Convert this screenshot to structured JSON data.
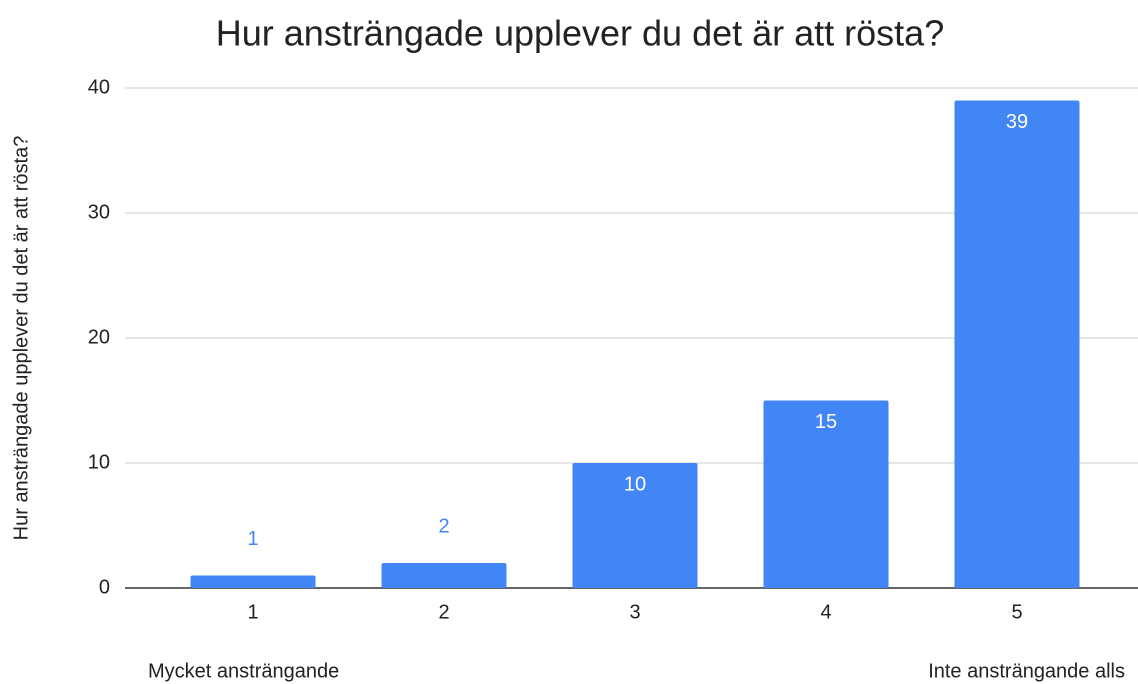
{
  "chart_data": {
    "type": "bar",
    "title": "Hur ansträngade upplever du det är att rösta?",
    "y_label": "Hur ansträngade upplever du det är att rösta?",
    "annotations": [
      "Mycket ansträngande",
      "Inte ansträngande alls"
    ],
    "categories": [
      "1",
      "2",
      "3",
      "4",
      "5"
    ],
    "values": [
      1,
      2,
      10,
      15,
      39
    ],
    "color": "#4285f4",
    "ylim": [
      0,
      40
    ],
    "yticks": [
      0,
      10,
      20,
      30,
      40
    ],
    "grid": true
  }
}
